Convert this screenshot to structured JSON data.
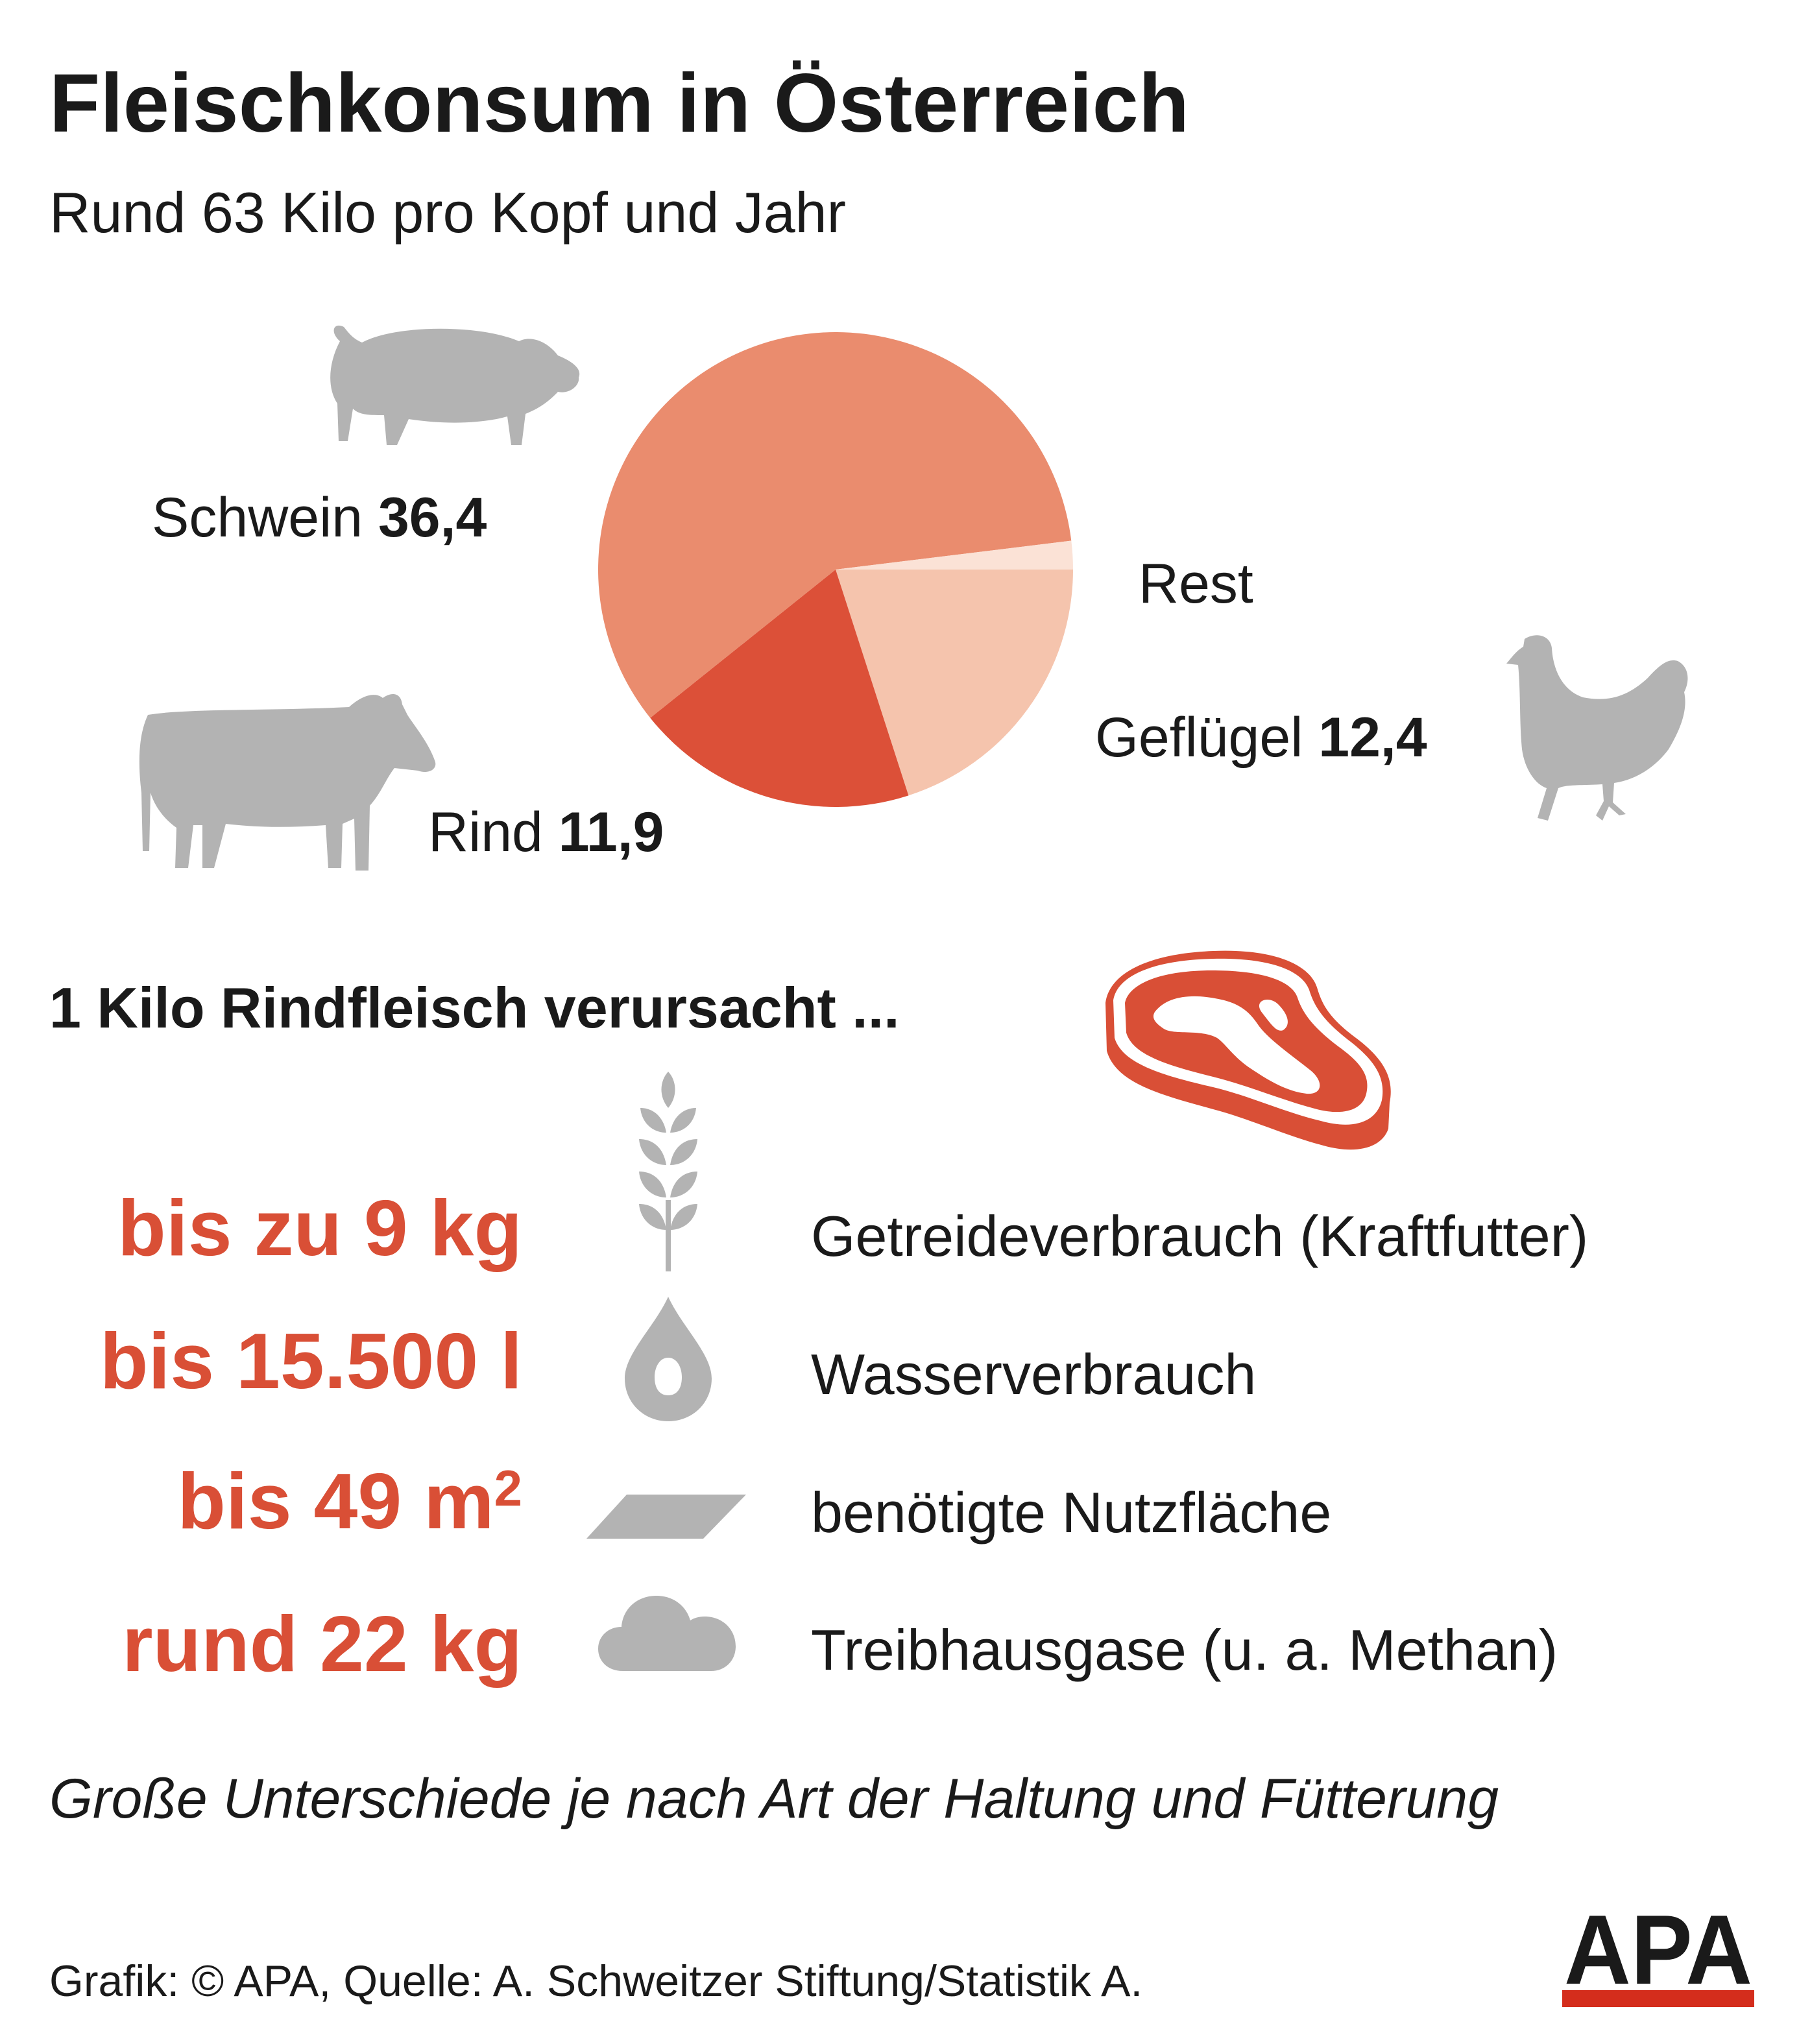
{
  "header": {
    "title": "Fleischkonsum in Österreich",
    "subtitle": "Rund 63 Kilo pro Kopf und Jahr"
  },
  "chart_data": {
    "type": "pie",
    "title": "Fleischkonsum in Österreich",
    "subtitle": "Rund 63 Kilo pro Kopf und Jahr",
    "slices": [
      {
        "name": "Schwein",
        "value": 36.4,
        "value_label": "36,4",
        "color": "#ea8c6e"
      },
      {
        "name": "Geflügel",
        "value": 12.4,
        "value_label": "12,4",
        "color": "#f5c4ad"
      },
      {
        "name": "Rest",
        "value": 1.2,
        "value_label": "",
        "color": "#fbe2d6"
      },
      {
        "name": "Rind",
        "value": 11.9,
        "value_label": "11,9",
        "color": "#dc5038"
      }
    ]
  },
  "beef": {
    "heading": "1 Kilo Rindfleisch verursacht ...",
    "items": [
      {
        "value": "bis zu 9 kg",
        "description": "Getreideverbrauch (Kraftfutter)",
        "icon": "wheat-icon"
      },
      {
        "value": "bis 15.500 l",
        "description": "Wasserverbrauch",
        "icon": "water-drop-icon"
      },
      {
        "value": "bis 49 m",
        "value_sup": "2",
        "description": "benötigte Nutzfläche",
        "icon": "area-icon"
      },
      {
        "value": "rund 22 kg",
        "description": "Treibhausgase (u. a. Methan)",
        "icon": "cloud-icon"
      }
    ]
  },
  "footnote": "Große Unterschiede je nach Art der Haltung und Fütterung",
  "source": "Grafik: © APA, Quelle: A. Schweitzer Stiftung/Statistik A.",
  "logo": {
    "text": "APA"
  },
  "colors": {
    "accent": "#d94f36",
    "icon_gray": "#b3b3b3",
    "text": "#1a1a1a"
  }
}
